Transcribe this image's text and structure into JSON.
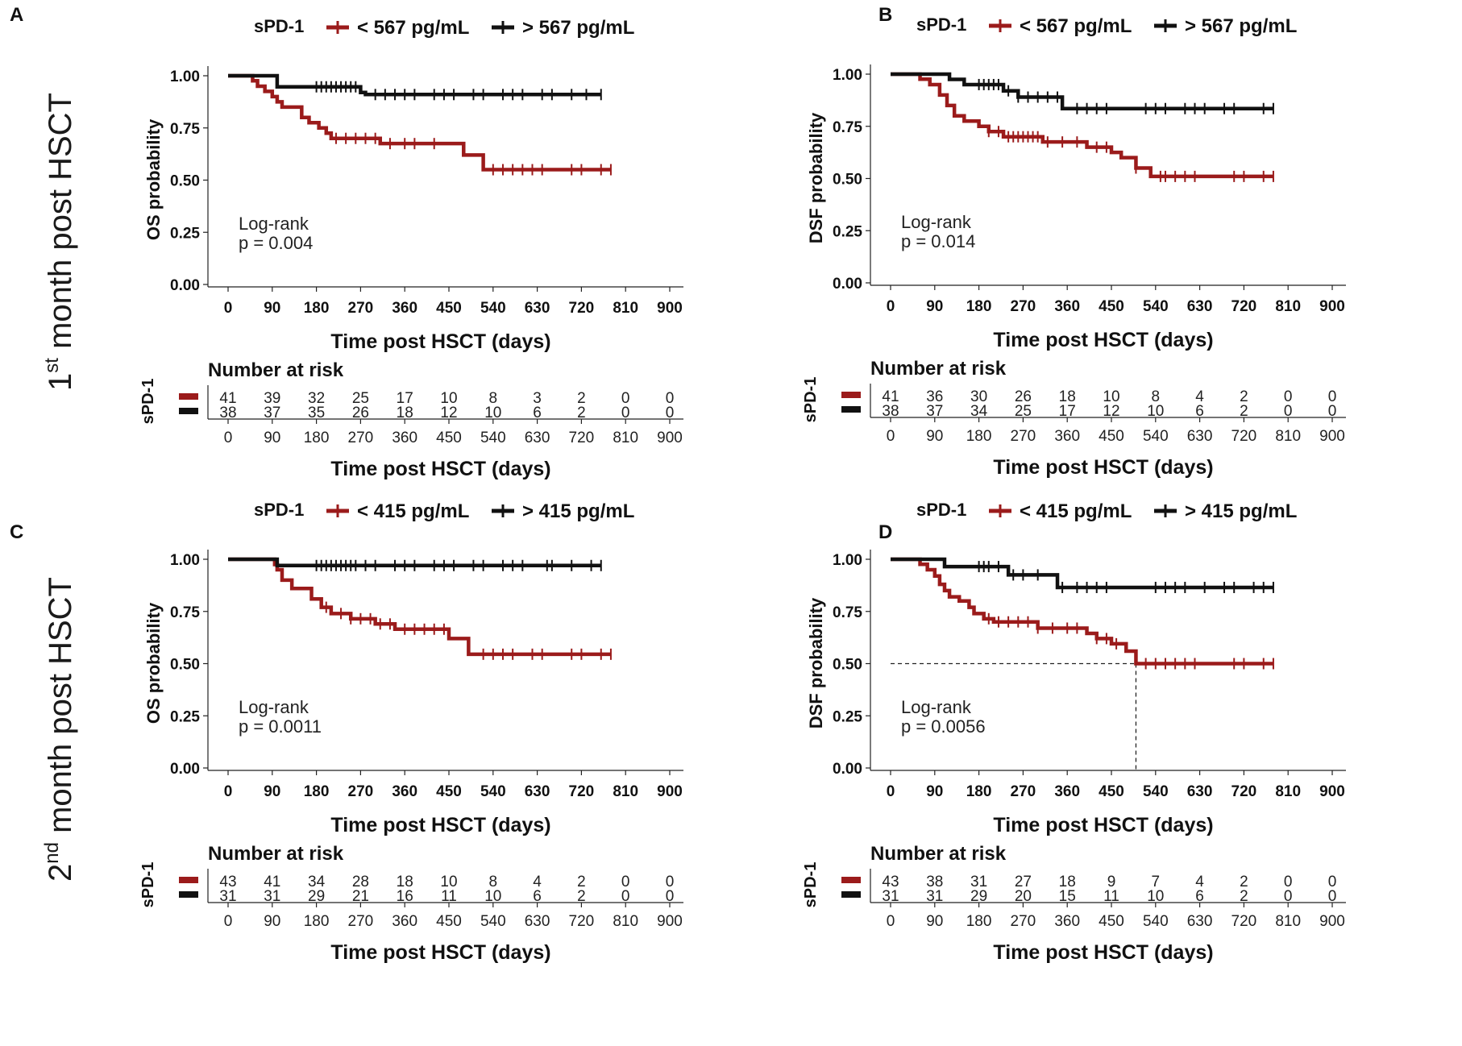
{
  "row_labels": [
    {
      "main": "1",
      "sup": "st",
      "rest": " month post HSCT"
    },
    {
      "main": "2",
      "sup": "nd",
      "rest": " month post HSCT"
    }
  ],
  "colors": {
    "low": "#9b1b1b",
    "high": "#111111"
  },
  "chart_data": [
    {
      "panel": "A",
      "type": "line",
      "subtype": "kaplan-meier",
      "legend_title": "sPD-1",
      "series": [
        {
          "name": "< 567 pg/mL",
          "color": "#9b1b1b",
          "x": [
            0,
            25,
            50,
            55,
            60,
            75,
            90,
            100,
            110,
            130,
            150,
            165,
            185,
            200,
            210,
            230,
            250,
            280,
            310,
            350,
            390,
            450,
            480,
            520,
            780
          ],
          "y": [
            1.0,
            1.0,
            0.976,
            0.976,
            0.95,
            0.925,
            0.9,
            0.875,
            0.85,
            0.85,
            0.8,
            0.775,
            0.75,
            0.725,
            0.7,
            0.7,
            0.7,
            0.7,
            0.675,
            0.675,
            0.675,
            0.675,
            0.62,
            0.55,
            0.55
          ],
          "censor_x": [
            220,
            240,
            260,
            280,
            300,
            330,
            360,
            380,
            420,
            540,
            560,
            580,
            600,
            620,
            640,
            700,
            720,
            760,
            780
          ]
        },
        {
          "name": "> 567 pg/mL",
          "color": "#111111",
          "x": [
            0,
            90,
            100,
            250,
            270,
            280,
            760
          ],
          "y": [
            1.0,
            1.0,
            0.947,
            0.947,
            0.92,
            0.91,
            0.91
          ],
          "censor_x": [
            180,
            190,
            200,
            210,
            220,
            230,
            240,
            250,
            260,
            300,
            320,
            340,
            360,
            380,
            420,
            440,
            460,
            500,
            520,
            560,
            580,
            600,
            640,
            660,
            700,
            730,
            760
          ]
        }
      ],
      "annotation": [
        "Log-rank",
        "p = 0.004"
      ],
      "xlabel": "Time post HSCT (days)",
      "ylabel": "OS probability",
      "xticks": [
        0,
        90,
        180,
        270,
        360,
        450,
        540,
        630,
        720,
        810,
        900
      ],
      "yticks": [
        "0.00",
        "0.25",
        "0.50",
        "0.75",
        "1.00"
      ],
      "xlim": [
        0,
        900
      ],
      "ylim": [
        0,
        1
      ],
      "median_lines": false,
      "risk_table": {
        "title": "Number at risk",
        "label": "sPD-1",
        "rows": [
          [
            41,
            39,
            32,
            25,
            17,
            10,
            8,
            3,
            2,
            0,
            0
          ],
          [
            38,
            37,
            35,
            26,
            18,
            12,
            10,
            6,
            2,
            0,
            0
          ]
        ],
        "xlabel": "Time post HSCT (days)"
      }
    },
    {
      "panel": "B",
      "type": "line",
      "subtype": "kaplan-meier",
      "legend_title": "sPD-1",
      "series": [
        {
          "name": "< 567 pg/mL",
          "color": "#9b1b1b",
          "x": [
            0,
            30,
            60,
            80,
            100,
            115,
            130,
            150,
            180,
            200,
            230,
            280,
            310,
            340,
            400,
            450,
            470,
            500,
            530,
            780
          ],
          "y": [
            1.0,
            1.0,
            0.976,
            0.95,
            0.9,
            0.85,
            0.8,
            0.775,
            0.75,
            0.725,
            0.7,
            0.7,
            0.675,
            0.675,
            0.65,
            0.625,
            0.6,
            0.55,
            0.51,
            0.51
          ],
          "censor_x": [
            200,
            220,
            240,
            250,
            260,
            270,
            280,
            290,
            300,
            320,
            350,
            380,
            420,
            440,
            500,
            550,
            560,
            580,
            600,
            620,
            700,
            720,
            760,
            780
          ]
        },
        {
          "name": "> 567 pg/mL",
          "color": "#111111",
          "x": [
            0,
            90,
            120,
            150,
            230,
            260,
            330,
            350,
            780
          ],
          "y": [
            1.0,
            1.0,
            0.975,
            0.95,
            0.92,
            0.89,
            0.89,
            0.835,
            0.835
          ],
          "censor_x": [
            180,
            190,
            200,
            210,
            220,
            240,
            260,
            280,
            300,
            320,
            340,
            380,
            400,
            420,
            440,
            520,
            540,
            560,
            600,
            620,
            640,
            680,
            700,
            760,
            780
          ]
        }
      ],
      "annotation": [
        "Log-rank",
        "p = 0.014"
      ],
      "xlabel": "Time post HSCT (days)",
      "ylabel": "DSF probability",
      "xticks": [
        0,
        90,
        180,
        270,
        360,
        450,
        540,
        630,
        720,
        810,
        900
      ],
      "yticks": [
        "0.00",
        "0.25",
        "0.50",
        "0.75",
        "1.00"
      ],
      "xlim": [
        0,
        900
      ],
      "ylim": [
        0,
        1
      ],
      "median_lines": false,
      "risk_table": {
        "title": "Number at risk",
        "label": "sPD-1",
        "rows": [
          [
            41,
            36,
            30,
            26,
            18,
            10,
            8,
            4,
            2,
            0,
            0
          ],
          [
            38,
            37,
            34,
            25,
            17,
            12,
            10,
            6,
            2,
            0,
            0
          ]
        ],
        "xlabel": "Time post HSCT (days)"
      }
    },
    {
      "panel": "C",
      "type": "line",
      "subtype": "kaplan-meier",
      "legend_title": "sPD-1",
      "series": [
        {
          "name": "< 415 pg/mL",
          "color": "#9b1b1b",
          "x": [
            0,
            85,
            95,
            100,
            110,
            130,
            160,
            170,
            190,
            210,
            250,
            280,
            300,
            310,
            340,
            380,
            450,
            490,
            780
          ],
          "y": [
            1.0,
            1.0,
            0.975,
            0.95,
            0.9,
            0.86,
            0.86,
            0.81,
            0.77,
            0.74,
            0.715,
            0.715,
            0.69,
            0.69,
            0.665,
            0.665,
            0.62,
            0.545,
            0.545
          ],
          "censor_x": [
            200,
            230,
            250,
            270,
            290,
            310,
            330,
            360,
            380,
            400,
            420,
            440,
            520,
            540,
            560,
            580,
            620,
            640,
            700,
            720,
            760,
            780
          ]
        },
        {
          "name": "> 415 pg/mL",
          "color": "#111111",
          "x": [
            0,
            95,
            100,
            760
          ],
          "y": [
            1.0,
            1.0,
            0.97,
            0.97
          ],
          "censor_x": [
            180,
            190,
            200,
            210,
            220,
            230,
            240,
            250,
            260,
            280,
            300,
            340,
            360,
            380,
            420,
            440,
            460,
            500,
            520,
            560,
            580,
            600,
            650,
            660,
            700,
            740,
            760
          ]
        }
      ],
      "annotation": [
        "Log-rank",
        "p = 0.0011"
      ],
      "xlabel": "Time post HSCT (days)",
      "ylabel": "OS probability",
      "xticks": [
        0,
        90,
        180,
        270,
        360,
        450,
        540,
        630,
        720,
        810,
        900
      ],
      "yticks": [
        "0.00",
        "0.25",
        "0.50",
        "0.75",
        "1.00"
      ],
      "xlim": [
        0,
        900
      ],
      "ylim": [
        0,
        1
      ],
      "median_lines": false,
      "risk_table": {
        "title": "Number at risk",
        "label": "sPD-1",
        "rows": [
          [
            43,
            41,
            34,
            28,
            18,
            10,
            8,
            4,
            2,
            0,
            0
          ],
          [
            31,
            31,
            29,
            21,
            16,
            11,
            10,
            6,
            2,
            0,
            0
          ]
        ],
        "xlabel": "Time post HSCT (days)"
      }
    },
    {
      "panel": "D",
      "type": "line",
      "subtype": "kaplan-meier",
      "legend_title": "sPD-1",
      "series": [
        {
          "name": "< 415 pg/mL",
          "color": "#9b1b1b",
          "x": [
            0,
            30,
            60,
            75,
            90,
            100,
            110,
            120,
            140,
            160,
            170,
            190,
            210,
            260,
            300,
            360,
            400,
            420,
            450,
            480,
            500,
            780
          ],
          "y": [
            1.0,
            1.0,
            0.976,
            0.95,
            0.92,
            0.88,
            0.85,
            0.82,
            0.8,
            0.77,
            0.74,
            0.715,
            0.7,
            0.7,
            0.67,
            0.67,
            0.645,
            0.62,
            0.595,
            0.56,
            0.5,
            0.5
          ],
          "censor_x": [
            200,
            220,
            240,
            260,
            280,
            300,
            330,
            360,
            380,
            420,
            440,
            460,
            520,
            540,
            560,
            580,
            600,
            620,
            700,
            720,
            760,
            780
          ]
        },
        {
          "name": "> 415 pg/mL",
          "color": "#111111",
          "x": [
            0,
            90,
            110,
            230,
            240,
            330,
            340,
            780
          ],
          "y": [
            1.0,
            1.0,
            0.965,
            0.965,
            0.925,
            0.925,
            0.865,
            0.865
          ],
          "censor_x": [
            180,
            190,
            200,
            220,
            250,
            270,
            300,
            350,
            380,
            400,
            420,
            440,
            540,
            560,
            580,
            600,
            640,
            680,
            700,
            740,
            760,
            780
          ]
        }
      ],
      "annotation": [
        "Log-rank",
        "p = 0.0056"
      ],
      "xlabel": "Time post HSCT (days)",
      "ylabel": "DSF probability",
      "xticks": [
        0,
        90,
        180,
        270,
        360,
        450,
        540,
        630,
        720,
        810,
        900
      ],
      "yticks": [
        "0.00",
        "0.25",
        "0.50",
        "0.75",
        "1.00"
      ],
      "xlim": [
        0,
        900
      ],
      "ylim": [
        0,
        1
      ],
      "median_lines": true,
      "median": {
        "x": 500,
        "y": 0.5
      },
      "risk_table": {
        "title": "Number at risk",
        "label": "sPD-1",
        "rows": [
          [
            43,
            38,
            31,
            27,
            18,
            9,
            7,
            4,
            2,
            0,
            0
          ],
          [
            31,
            31,
            29,
            20,
            15,
            11,
            10,
            6,
            2,
            0,
            0
          ]
        ],
        "xlabel": "Time post HSCT (days)"
      }
    }
  ]
}
